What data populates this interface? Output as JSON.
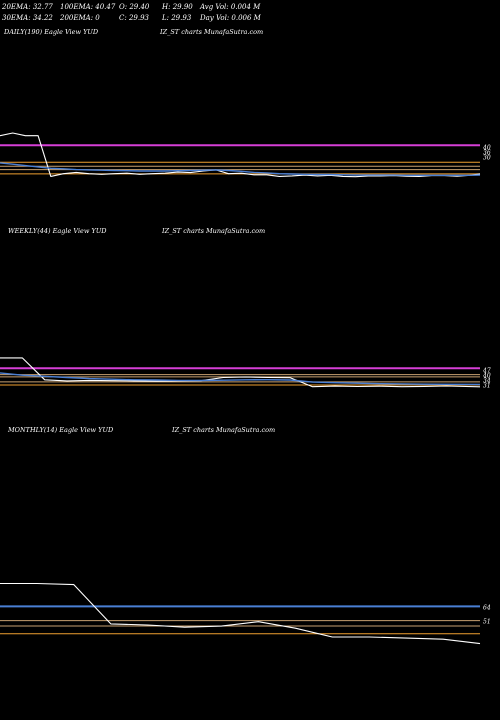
{
  "header": {
    "row1": [
      "20EMA: 32.77",
      "100EMA: 40.47",
      "O: 29.40",
      "H: 29.90",
      "Avg Vol: 0.004  M"
    ],
    "row2": [
      "30EMA: 34.22",
      "200EMA: 0",
      "C: 29.93",
      "L: 29.93",
      "Day Vol: 0.006  M"
    ]
  },
  "colors": {
    "background": "#000000",
    "text": "#ffffff",
    "price": "#ffffff",
    "ema_blue": "#4a7fd4",
    "ema_magenta": "#d63fd6",
    "orange": "#f0a030",
    "tan": "#c8a070"
  },
  "chart_data": [
    {
      "type": "line",
      "panel": "daily",
      "label_left": "DAILY(190) Eagle   View  YUD",
      "label_center": "IZ_ST charts MunafaSutra.com",
      "x": [
        0,
        5,
        10,
        15,
        20,
        25,
        30,
        35,
        40,
        45,
        50,
        55,
        60,
        65,
        70,
        75,
        80,
        85,
        90,
        95,
        100,
        105,
        110,
        115,
        120,
        125,
        130,
        135,
        140,
        145,
        150,
        155,
        160,
        165,
        170,
        175,
        180,
        185,
        189
      ],
      "series": [
        {
          "name": "",
          "values": [
            44,
            45,
            44,
            44,
            29,
            30,
            30.5,
            30,
            29.8,
            30,
            30.2,
            29.8,
            30,
            30.2,
            30.6,
            30.4,
            31,
            31.4,
            30,
            30.2,
            29.6,
            29.6,
            29,
            29.2,
            29.5,
            29.2,
            29.4,
            29,
            28.9,
            29.2,
            29.2,
            29.3,
            29.1,
            29,
            29.3,
            29.3,
            29.1,
            29.4,
            29.93
          ],
          "color": "#ffffff"
        },
        {
          "name": "",
          "values": [
            34,
            33.5,
            33,
            32.5,
            32,
            31.8,
            31.5,
            31.4,
            31.3,
            31.2,
            31.1,
            31,
            31,
            31,
            31.1,
            31.2,
            31.3,
            31.4,
            31.2,
            30.9,
            30.5,
            30.3,
            30,
            29.9,
            29.8,
            29.7,
            29.7,
            29.6,
            29.5,
            29.5,
            29.5,
            29.5,
            29.4,
            29.4,
            29.4,
            29.4,
            29.4,
            29.4,
            29.5
          ],
          "color": "#4a7fd4"
        }
      ],
      "hlines": [
        {
          "value": 40.47,
          "color": "#d63fd6"
        },
        {
          "value": 34.22,
          "color": "#f0a030"
        },
        {
          "value": 32.77,
          "color": "#c8a070"
        },
        {
          "value": 31.5,
          "color": "#c8a070"
        },
        {
          "value": 29.93,
          "color": "#f0a030"
        }
      ],
      "ylim": [
        10,
        80
      ],
      "right_labels": [
        "40",
        "36",
        "30"
      ]
    },
    {
      "type": "line",
      "panel": "weekly",
      "label_left": "WEEKLY(44) Eagle   View  YUD",
      "label_center": "IZ_ST charts MunafaSutra.com",
      "x": [
        0,
        2,
        4,
        6,
        8,
        10,
        12,
        14,
        16,
        18,
        20,
        22,
        24,
        26,
        28,
        30,
        32,
        34,
        36,
        38,
        40,
        43
      ],
      "series": [
        {
          "name": "",
          "values": [
            55,
            55,
            36,
            35,
            35.5,
            35.2,
            35,
            34.8,
            35,
            35.2,
            38,
            38.4,
            38,
            37.8,
            30,
            30.5,
            30.2,
            30.4,
            30,
            30.3,
            30.6,
            29.93
          ],
          "color": "#ffffff"
        },
        {
          "name": "",
          "values": [
            42,
            40,
            39,
            38,
            37,
            36.5,
            36,
            35.8,
            35.5,
            35.4,
            35.6,
            36,
            36.1,
            35.8,
            34,
            33.5,
            33,
            32.6,
            32.4,
            32.2,
            32.1,
            32
          ],
          "color": "#4a7fd4"
        }
      ],
      "hlines": [
        {
          "value": 46,
          "color": "#d63fd6"
        },
        {
          "value": 40.47,
          "color": "#c8a070"
        },
        {
          "value": 38.5,
          "color": "#c8a070"
        },
        {
          "value": 34.22,
          "color": "#c8a070"
        },
        {
          "value": 31.5,
          "color": "#f0a030"
        }
      ],
      "ylim": [
        -5,
        160
      ],
      "right_labels": [
        "47",
        "40",
        "34",
        "31"
      ]
    },
    {
      "type": "line",
      "panel": "monthly",
      "label_left": "MONTHLY(14) Eagle   View  YUD",
      "label_center": "IZ_ST charts MunafaSutra.com",
      "x": [
        0,
        1,
        2,
        3,
        4,
        5,
        6,
        7,
        8,
        9,
        10,
        11,
        12,
        13
      ],
      "series": [
        {
          "name": "",
          "values": [
            85,
            85,
            84,
            48,
            47,
            45,
            46,
            50,
            44,
            36,
            36,
            35,
            34,
            29.93
          ],
          "color": "#ffffff"
        }
      ],
      "hlines": [
        {
          "value": 64,
          "color": "#4a7fd4"
        },
        {
          "value": 51,
          "color": "#c8a070"
        },
        {
          "value": 46,
          "color": "#c8a070"
        },
        {
          "value": 39,
          "color": "#f0a030"
        }
      ],
      "ylim": [
        -40,
        220
      ],
      "right_labels": [
        "64",
        "51"
      ]
    }
  ]
}
